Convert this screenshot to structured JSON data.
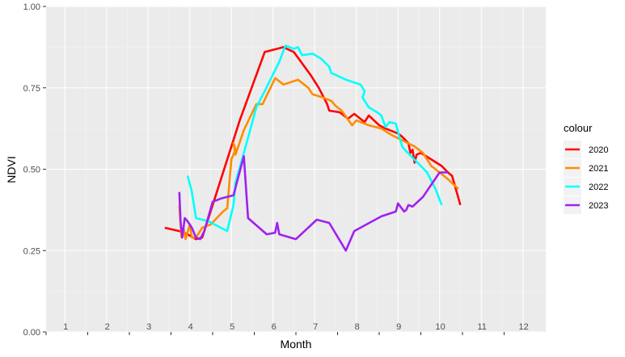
{
  "chart_data": {
    "type": "line",
    "xlabel": "Month",
    "ylabel": "NDVI",
    "ylim": [
      0,
      1
    ],
    "xlim": [
      0.55,
      12.55
    ],
    "y_ticks": [
      "0.00",
      "0.25",
      "0.50",
      "0.75",
      "1.00"
    ],
    "y_tick_values": [
      0,
      0.25,
      0.5,
      0.75,
      1
    ],
    "x_tick_labels": [
      "1",
      "2",
      "3",
      "4",
      "5",
      "6",
      "7",
      "8",
      "9",
      "10",
      "11",
      "12"
    ],
    "x_tick_values": [
      1,
      2,
      3,
      4,
      5,
      6,
      7,
      8,
      9,
      10,
      11,
      12
    ],
    "grid": true,
    "legend_title": "colour",
    "legend_position": "right",
    "series": [
      {
        "name": "2020",
        "color": "#ff0000",
        "points": [
          [
            3.4,
            0.32
          ],
          [
            3.75,
            0.31
          ],
          [
            3.95,
            0.3
          ],
          [
            4.15,
            0.285
          ],
          [
            4.3,
            0.29
          ],
          [
            4.6,
            0.41
          ],
          [
            5.2,
            0.65
          ],
          [
            5.8,
            0.86
          ],
          [
            6.25,
            0.875
          ],
          [
            6.5,
            0.86
          ],
          [
            6.9,
            0.79
          ],
          [
            7.1,
            0.75
          ],
          [
            7.3,
            0.7
          ],
          [
            7.35,
            0.68
          ],
          [
            7.6,
            0.675
          ],
          [
            7.8,
            0.655
          ],
          [
            7.95,
            0.67
          ],
          [
            8.2,
            0.645
          ],
          [
            8.3,
            0.665
          ],
          [
            8.55,
            0.635
          ],
          [
            8.7,
            0.625
          ],
          [
            9.0,
            0.61
          ],
          [
            9.1,
            0.6
          ],
          [
            9.25,
            0.58
          ],
          [
            9.3,
            0.55
          ],
          [
            9.35,
            0.56
          ],
          [
            9.4,
            0.52
          ],
          [
            9.45,
            0.545
          ],
          [
            9.55,
            0.55
          ],
          [
            9.8,
            0.53
          ],
          [
            10.05,
            0.51
          ],
          [
            10.2,
            0.49
          ],
          [
            10.3,
            0.48
          ],
          [
            10.5,
            0.39
          ]
        ]
      },
      {
        "name": "2021",
        "color": "#ff8c00",
        "points": [
          [
            3.75,
            0.39
          ],
          [
            3.8,
            0.29
          ],
          [
            3.85,
            0.32
          ],
          [
            3.9,
            0.285
          ],
          [
            4.0,
            0.33
          ],
          [
            4.05,
            0.29
          ],
          [
            4.15,
            0.29
          ],
          [
            4.3,
            0.32
          ],
          [
            4.5,
            0.33
          ],
          [
            4.8,
            0.37
          ],
          [
            4.9,
            0.38
          ],
          [
            5.0,
            0.53
          ],
          [
            5.1,
            0.56
          ],
          [
            5.05,
            0.58
          ],
          [
            5.1,
            0.545
          ],
          [
            5.3,
            0.62
          ],
          [
            5.6,
            0.7
          ],
          [
            5.75,
            0.7
          ],
          [
            6.05,
            0.78
          ],
          [
            6.25,
            0.76
          ],
          [
            6.6,
            0.775
          ],
          [
            6.85,
            0.75
          ],
          [
            6.95,
            0.73
          ],
          [
            7.2,
            0.72
          ],
          [
            7.4,
            0.71
          ],
          [
            7.5,
            0.695
          ],
          [
            7.65,
            0.68
          ],
          [
            7.9,
            0.635
          ],
          [
            8.0,
            0.65
          ],
          [
            8.3,
            0.635
          ],
          [
            8.6,
            0.625
          ],
          [
            8.85,
            0.605
          ],
          [
            9.4,
            0.57
          ],
          [
            9.6,
            0.55
          ],
          [
            9.75,
            0.52
          ],
          [
            9.8,
            0.51
          ],
          [
            10.0,
            0.49
          ],
          [
            10.15,
            0.475
          ],
          [
            10.45,
            0.44
          ]
        ]
      },
      {
        "name": "2022",
        "color": "#00ffff",
        "points": [
          [
            3.95,
            0.48
          ],
          [
            4.05,
            0.43
          ],
          [
            4.15,
            0.35
          ],
          [
            4.45,
            0.34
          ],
          [
            4.9,
            0.31
          ],
          [
            5.05,
            0.39
          ],
          [
            5.1,
            0.46
          ],
          [
            5.3,
            0.55
          ],
          [
            5.6,
            0.69
          ],
          [
            5.8,
            0.74
          ],
          [
            6.15,
            0.83
          ],
          [
            6.3,
            0.88
          ],
          [
            6.5,
            0.87
          ],
          [
            6.6,
            0.875
          ],
          [
            6.7,
            0.85
          ],
          [
            6.95,
            0.855
          ],
          [
            7.15,
            0.84
          ],
          [
            7.35,
            0.815
          ],
          [
            7.4,
            0.795
          ],
          [
            7.5,
            0.79
          ],
          [
            7.75,
            0.775
          ],
          [
            8.1,
            0.76
          ],
          [
            8.2,
            0.74
          ],
          [
            8.15,
            0.72
          ],
          [
            8.3,
            0.69
          ],
          [
            8.5,
            0.675
          ],
          [
            8.6,
            0.665
          ],
          [
            8.7,
            0.63
          ],
          [
            8.8,
            0.645
          ],
          [
            8.95,
            0.64
          ],
          [
            9.0,
            0.615
          ],
          [
            9.1,
            0.57
          ],
          [
            9.2,
            0.555
          ],
          [
            9.55,
            0.51
          ],
          [
            9.7,
            0.49
          ],
          [
            9.9,
            0.44
          ],
          [
            10.05,
            0.39
          ]
        ]
      },
      {
        "name": "2023",
        "color": "#a020f0",
        "points": [
          [
            3.75,
            0.43
          ],
          [
            3.78,
            0.34
          ],
          [
            3.82,
            0.29
          ],
          [
            3.88,
            0.35
          ],
          [
            3.95,
            0.34
          ],
          [
            4.05,
            0.32
          ],
          [
            4.15,
            0.29
          ],
          [
            4.25,
            0.285
          ],
          [
            4.35,
            0.31
          ],
          [
            4.55,
            0.4
          ],
          [
            4.75,
            0.41
          ],
          [
            5.05,
            0.42
          ],
          [
            5.3,
            0.54
          ],
          [
            5.4,
            0.35
          ],
          [
            5.85,
            0.3
          ],
          [
            6.05,
            0.305
          ],
          [
            6.1,
            0.335
          ],
          [
            6.15,
            0.3
          ],
          [
            6.55,
            0.285
          ],
          [
            7.05,
            0.345
          ],
          [
            7.35,
            0.335
          ],
          [
            7.75,
            0.25
          ],
          [
            7.95,
            0.31
          ],
          [
            8.6,
            0.355
          ],
          [
            8.95,
            0.37
          ],
          [
            9.0,
            0.395
          ],
          [
            9.15,
            0.37
          ],
          [
            9.2,
            0.375
          ],
          [
            9.25,
            0.39
          ],
          [
            9.35,
            0.385
          ],
          [
            9.6,
            0.415
          ],
          [
            10.0,
            0.49
          ],
          [
            10.2,
            0.49
          ]
        ]
      }
    ]
  }
}
